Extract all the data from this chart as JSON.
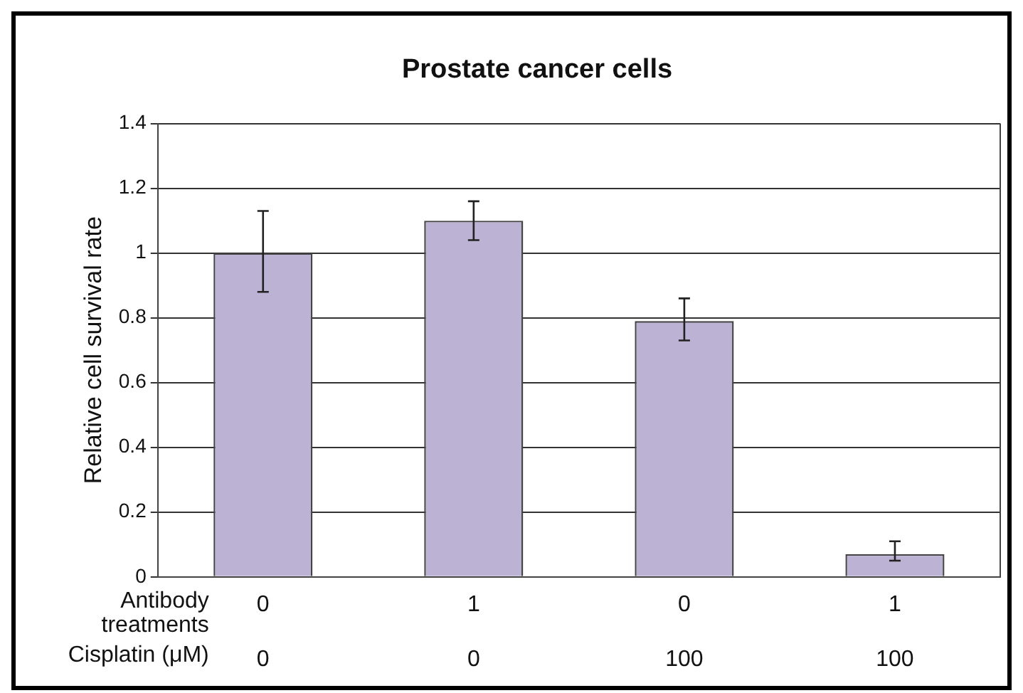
{
  "chart_data": {
    "type": "bar",
    "title": "Prostate cancer cells",
    "ylabel": "Relative cell survival rate",
    "categories": [
      "0\n0",
      "1\n0",
      "0\n100",
      "1\n100"
    ],
    "annotations": [
      "Antibody treatments",
      "Cisplatin (μM)"
    ],
    "values": [
      1.0,
      1.1,
      0.79,
      0.07
    ],
    "errors": [
      [
        0.88,
        1.13
      ],
      [
        1.04,
        1.16
      ],
      [
        0.73,
        0.86
      ],
      [
        0.05,
        0.11
      ]
    ],
    "color": "#bcb2d3",
    "ylim": [
      0,
      1.4
    ],
    "yticks": [
      0,
      0.2,
      0.4,
      0.6,
      0.8,
      1,
      1.2,
      1.4
    ],
    "grid": "y",
    "legend": false
  }
}
